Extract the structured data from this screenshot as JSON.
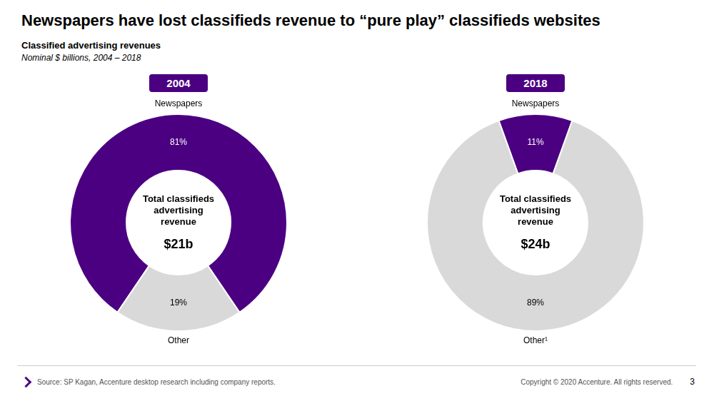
{
  "title": "Newspapers have lost classifieds revenue to “pure play” classifieds websites",
  "subtitle": [
    "Classified advertising revenues",
    "Nominal $ billions, 2004 – 2018"
  ],
  "annotations": [
    "Source: SP Kagan, Accenture  desktop research  including  company reports.",
    "Copyright © 2020 Accenture. All rights reserved.",
    "3"
  ],
  "chart_data": [
    {
      "type": "doughnut",
      "title": "2004",
      "categories": [
        "Newspapers",
        "Other"
      ],
      "values": [
        81,
        19
      ],
      "value_labels": [
        "81%",
        "19%"
      ],
      "colors": [
        "#4B0082",
        "#D9D9D9"
      ],
      "data_labels": true,
      "annotations": [
        "Total classifieds",
        "advertising",
        "revenue",
        "$21b"
      ]
    },
    {
      "type": "doughnut",
      "title": "2018",
      "categories": [
        "Newspapers",
        "Other¹"
      ],
      "values": [
        11,
        89
      ],
      "value_labels": [
        "11%",
        "89%"
      ],
      "colors": [
        "#4B0082",
        "#D9D9D9"
      ],
      "data_labels": true,
      "annotations": [
        "Total classifieds",
        "advertising",
        "revenue",
        "$24b"
      ]
    }
  ]
}
